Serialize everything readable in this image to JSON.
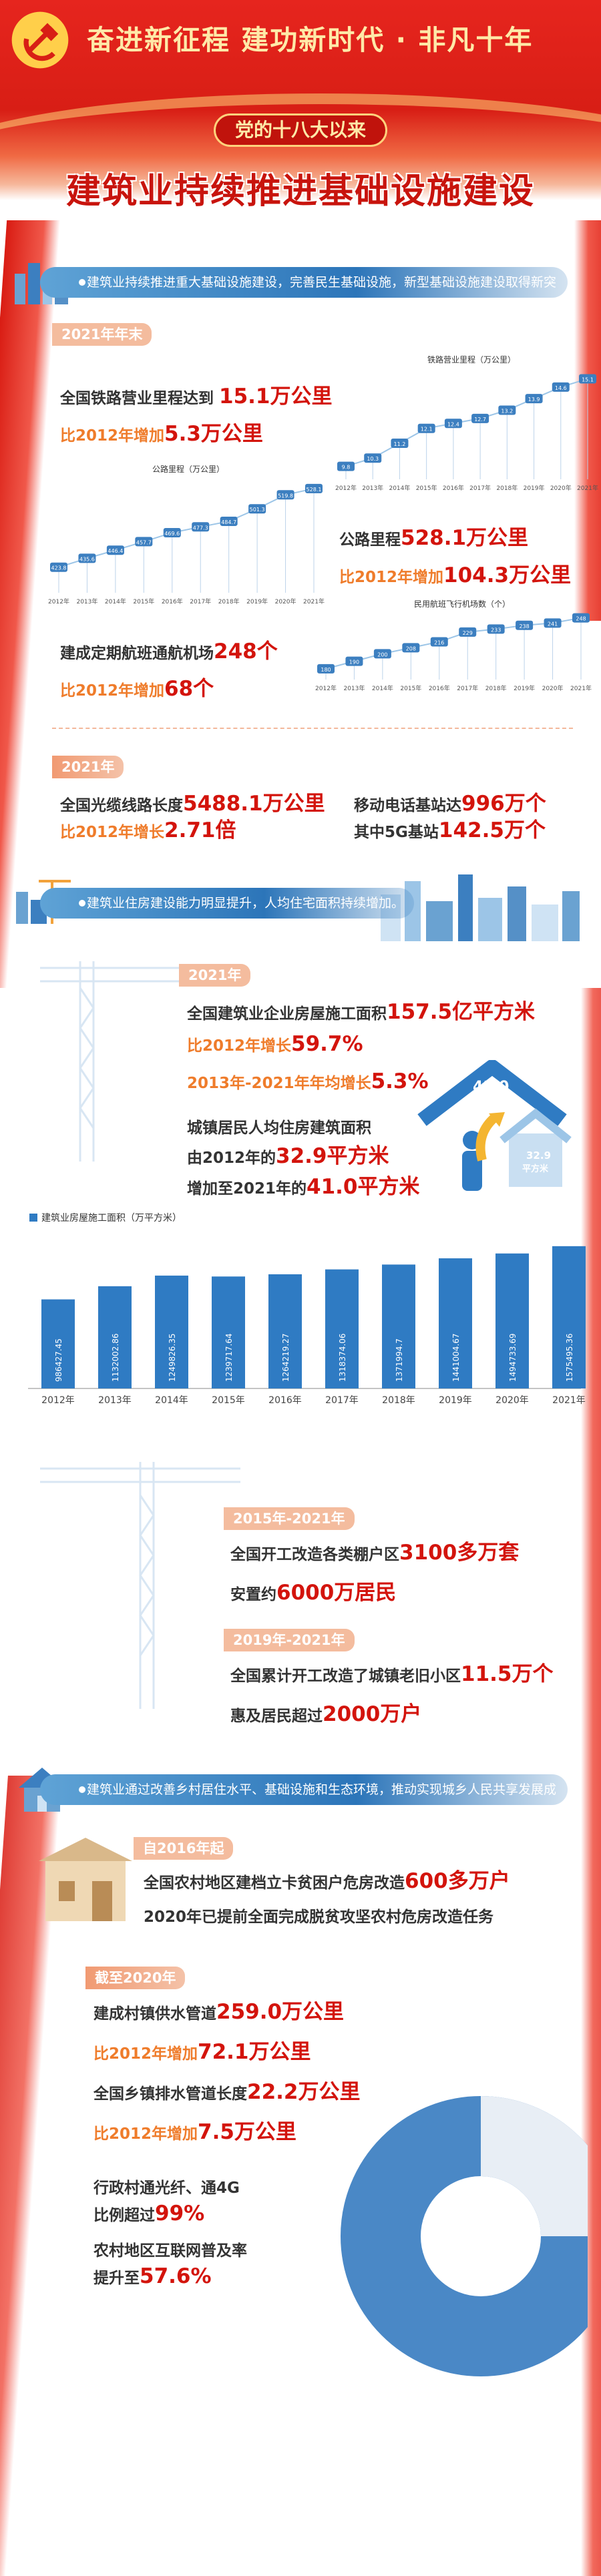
{
  "header": {
    "slogan": "奋进新征程  建功新时代 · 非凡十年",
    "tag": "党的十八大以来",
    "title": "建筑业持续推进基础设施建设"
  },
  "section1": {
    "bar": "建筑业持续推进重大基础设施建设，完善民生基础设施，新型基础设施建设取得新突破。",
    "year_tag": "2021年年末",
    "rail_line1_pre": "全国铁路营业里程达到",
    "rail_line1_num": "15.1万公里",
    "rail_line2_pre": "比2012年增加",
    "rail_line2_num": "5.3万公里",
    "road_line1_pre": "公路里程",
    "road_line1_num": "528.1万公里",
    "road_line2_pre": "比2012年增加",
    "road_line2_num": "104.3万公里",
    "air_line1_pre": "建成定期航班通航机场",
    "air_line1_num": "248个",
    "air_line2_pre": "比2012年增加",
    "air_line2_num": "68个",
    "rail_chart_label": "铁路营业里程（万公里）",
    "road_chart_label": "公路里程（万公里）",
    "air_chart_label": "民用航班飞行机场数（个）",
    "year_tag2": "2021年",
    "fiber_pre": "全国光缆线路长度",
    "fiber_num": "5488.1万公里",
    "fiber2_pre": "比2012年增长",
    "fiber2_num": "2.71倍",
    "mobile_pre": "移动电话基站达",
    "mobile_num": "996万个",
    "g5_pre": "其中5G基站",
    "g5_num": "142.5万个"
  },
  "section2": {
    "bar": "建筑业住房建设能力明显提升，人均住宅面积持续增加。",
    "year_tag": "2021年",
    "area_pre": "全国建筑业企业房屋施工面积",
    "area_num": "157.5亿平方米",
    "growth_pre": "比2012年增长",
    "growth_num": "59.7%",
    "avg_pre": "2013年-2021年年均增长",
    "avg_num": "5.3%",
    "urban1": "城镇居民人均住房建筑面积",
    "urban2_pre": "由2012年的",
    "urban2_num": "32.9平方米",
    "urban3_pre": "增加至2021年的",
    "urban3_num": "41.0平方米",
    "house_big": "41.0",
    "house_big_unit": "平方米",
    "house_small": "32.9",
    "house_small_unit": "平方米",
    "year_tag2": "2015年-2021年",
    "shack_pre": "全国开工改造各类棚户区",
    "shack_num": "3100多万套",
    "settle_pre": "安置约",
    "settle_num": "6000万居民",
    "year_tag3": "2019年-2021年",
    "old_pre": "全国累计开工改造了城镇老旧小区",
    "old_num": "11.5万个",
    "benefit_pre": "惠及居民超过",
    "benefit_num": "2000万户"
  },
  "section3": {
    "bar": "建筑业通过改善乡村居住水平、基础设施和生态环境，推动实现城乡人民共享发展成果。",
    "year_tag": "自2016年起",
    "rural1_pre": "全国农村地区建档立卡贫困户危房改造",
    "rural1_num": "600多万户",
    "rural2": "2020年已提前全面完成脱贫攻坚农村危房改造任务",
    "year_tag2": "截至2020年",
    "water_pre": "建成村镇供水管道",
    "water_num": "259.0万公里",
    "water2_pre": "比2012年增加",
    "water2_num": "72.1万公里",
    "drain_pre": "全国乡镇排水管道长度",
    "drain_num": "22.2万公里",
    "drain2_pre": "比2012年增加",
    "drain2_num": "7.5万公里",
    "net1": "行政村通光纤、通4G",
    "net2_pre": "比例超过",
    "net2_num": "99%",
    "net3": "农村地区互联网普及率",
    "net4_pre": "提升至",
    "net4_num": "57.6%"
  },
  "colors": {
    "red": "#d3140c",
    "blue": "#2f7bc3",
    "orange": "#ef7c2b"
  },
  "chart_data": [
    {
      "type": "bar",
      "title": "",
      "legend": "建筑业房屋施工面积（万平方米）",
      "categories": [
        "2012年",
        "2013年",
        "2014年",
        "2015年",
        "2016年",
        "2017年",
        "2018年",
        "2019年",
        "2020年",
        "2021年"
      ],
      "series": [
        {
          "name": "建筑业房屋施工面积（万平方米）",
          "values": [
            986427.45,
            1132002.86,
            1249826.35,
            1239717.64,
            1264219.27,
            1318374.06,
            1371994.7,
            1441004.67,
            1494733.69,
            1575495.36
          ]
        }
      ],
      "ylim": [
        0,
        1700000
      ],
      "grid": false,
      "legend_position": "top-left"
    },
    {
      "type": "line",
      "title": "铁路营业里程（万公里）",
      "categories": [
        "2012年",
        "2013年",
        "2014年",
        "2015年",
        "2016年",
        "2017年",
        "2018年",
        "2019年",
        "2020年",
        "2021年"
      ],
      "values": [
        9.8,
        10.3,
        11.2,
        12.1,
        12.4,
        12.7,
        13.2,
        13.9,
        14.6,
        15.1
      ]
    },
    {
      "type": "line",
      "title": "公路里程（万公里）",
      "categories": [
        "2012年",
        "2013年",
        "2014年",
        "2015年",
        "2016年",
        "2017年",
        "2018年",
        "2019年",
        "2020年",
        "2021年"
      ],
      "values": [
        423.8,
        435.6,
        446.4,
        457.7,
        469.6,
        477.3,
        484.7,
        501.3,
        519.8,
        528.1
      ]
    },
    {
      "type": "line",
      "title": "民用航班飞行机场数（个）",
      "categories": [
        "2012年",
        "2013年",
        "2014年",
        "2015年",
        "2016年",
        "2017年",
        "2018年",
        "2019年",
        "2020年",
        "2021年"
      ],
      "values": [
        180,
        190,
        200,
        208,
        216,
        229,
        233,
        238,
        241,
        248
      ]
    }
  ]
}
